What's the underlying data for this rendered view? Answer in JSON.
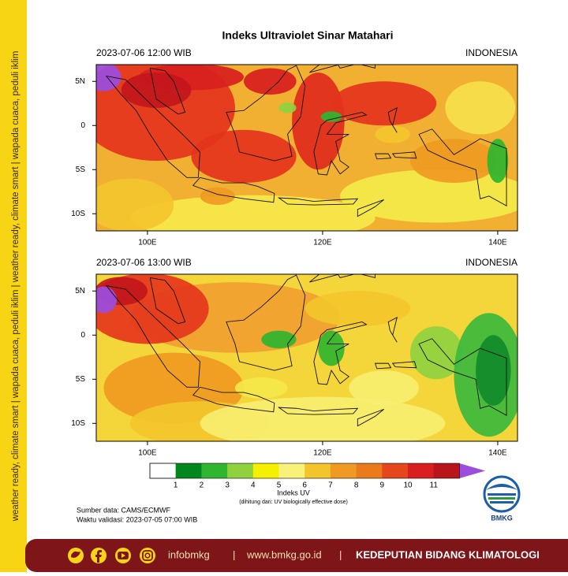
{
  "sidebar": {
    "text": "weather ready, climate smart | wapada cuaca, peduli iklim | weather ready, climate smart | wapada cuaca, peduli iklim"
  },
  "header": {
    "title": "Indeks Ultraviolet Sinar Matahari"
  },
  "panels": [
    {
      "time": "2023-07-06  12:00 WIB",
      "region": "INDONESIA",
      "lat_labels": [
        "5N",
        "0",
        "5S",
        "10S"
      ],
      "lon_labels": [
        "100E",
        "120E",
        "140E"
      ]
    },
    {
      "time": "2023-07-06  13:00 WIB",
      "region": "INDONESIA",
      "lat_labels": [
        "5N",
        "0",
        "5S",
        "10S"
      ],
      "lon_labels": [
        "100E",
        "120E",
        "140E"
      ]
    }
  ],
  "colorbar": {
    "ticks": [
      1,
      2,
      3,
      4,
      5,
      6,
      7,
      8,
      9,
      10,
      11
    ],
    "colors": [
      "#ffffff",
      "#00871e",
      "#2fb52f",
      "#8fd13f",
      "#f5f000",
      "#f8f27a",
      "#f3c52c",
      "#ef9a22",
      "#ea7a1c",
      "#e4471c",
      "#d81e1e",
      "#b8141c",
      "#9b4de0"
    ],
    "title": "Indeks UV",
    "note": "(dihitung dari: UV biologically effective dose)"
  },
  "footnote": {
    "source": "Sumber data: CAMS/ECMWF",
    "valid": "Waktu validasi: 2023-07-05 07:00 WIB"
  },
  "logo": {
    "text": "BMKG"
  },
  "footer": {
    "handle": "infobmkg",
    "separators": [
      "|",
      "|"
    ],
    "url": "www.bmkg.go.id",
    "dept": "KEDEPUTIAN BIDANG KLIMATOLOGI"
  }
}
